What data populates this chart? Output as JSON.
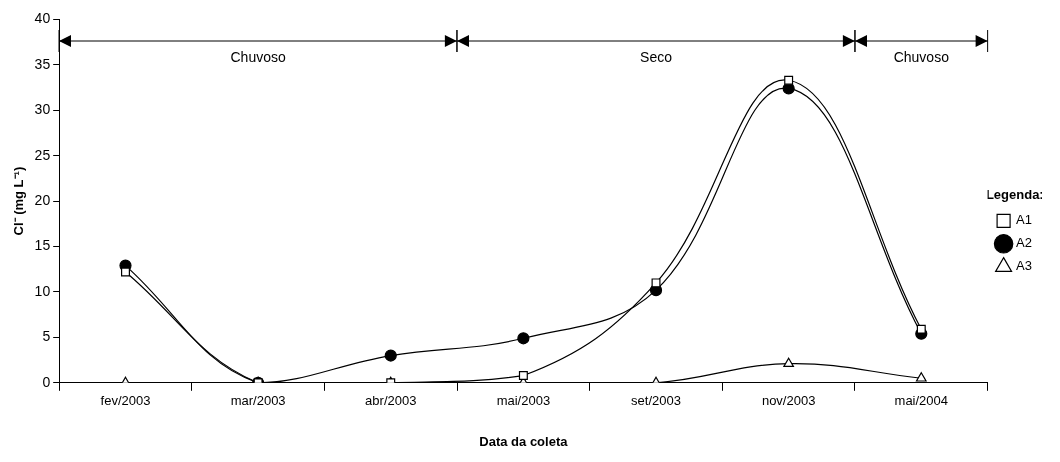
{
  "chart_data": {
    "type": "line",
    "xlabel": "Data da coleta",
    "ylabel": "Cl⁻ (mg L⁻¹)",
    "legend_title": "Legenda:",
    "categories": [
      "fev/2003",
      "mar/2003",
      "abr/2003",
      "mai/2003",
      "set/2003",
      "nov/2003",
      "mai/2004"
    ],
    "series": [
      {
        "name": "A1",
        "color": "#000000",
        "marker": "square",
        "values": [
          12.2,
          0,
          0,
          0.8,
          11,
          33.3,
          5.9
        ]
      },
      {
        "name": "A2",
        "color": "#000000",
        "marker": "circle",
        "values": [
          12.9,
          0,
          3.0,
          4.9,
          10.2,
          32.4,
          5.4
        ]
      },
      {
        "name": "A3",
        "color": "#000000",
        "marker": "triangle",
        "values": [
          0,
          0,
          0,
          0,
          0,
          2.1,
          0.5
        ]
      }
    ],
    "ylim": [
      0,
      40
    ],
    "yticks": [
      0,
      5,
      10,
      15,
      20,
      25,
      30,
      35,
      40
    ],
    "annotations": [
      "Chuvoso",
      "Seco",
      "Chuvoso"
    ],
    "grid": false,
    "legend": "right"
  }
}
